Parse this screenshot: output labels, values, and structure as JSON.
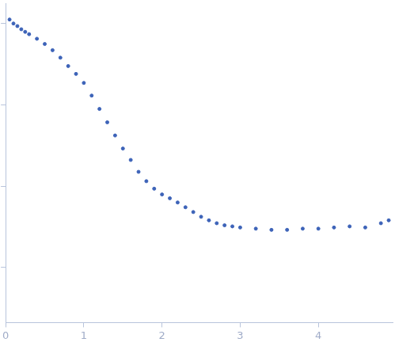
{
  "chart_data": {
    "type": "scatter",
    "x": [
      0.05,
      0.1,
      0.15,
      0.2,
      0.25,
      0.3,
      0.4,
      0.5,
      0.6,
      0.7,
      0.8,
      0.9,
      1.0,
      1.1,
      1.2,
      1.3,
      1.4,
      1.5,
      1.6,
      1.7,
      1.8,
      1.9,
      2.0,
      2.1,
      2.2,
      2.3,
      2.4,
      2.5,
      2.6,
      2.7,
      2.8,
      2.9,
      3.0,
      3.2,
      3.4,
      3.6,
      3.8,
      4.0,
      4.2,
      4.4,
      4.6,
      4.8,
      4.9
    ],
    "values": [
      1.12,
      1.0,
      0.93,
      0.85,
      0.79,
      0.74,
      0.65,
      0.56,
      0.47,
      0.38,
      0.3,
      0.24,
      0.186,
      0.13,
      0.089,
      0.061,
      0.042,
      0.029,
      0.021,
      0.015,
      0.0115,
      0.0093,
      0.0079,
      0.0071,
      0.0063,
      0.0055,
      0.0048,
      0.0042,
      0.0038,
      0.0035,
      0.0033,
      0.0032,
      0.0031,
      0.003,
      0.0029,
      0.0029,
      0.003,
      0.003,
      0.0031,
      0.0032,
      0.0031,
      0.0035,
      0.0038
    ],
    "color": "#3d63b8",
    "marker": "circle",
    "xlim": [
      0,
      4.95
    ],
    "xticks": [
      0,
      1,
      2,
      3,
      4
    ],
    "ylim": [
      0.00021,
      1.78
    ],
    "yticks": [
      0.001,
      0.01,
      0.1,
      1
    ],
    "log": "y",
    "grid": false,
    "tick_labels": "x"
  }
}
